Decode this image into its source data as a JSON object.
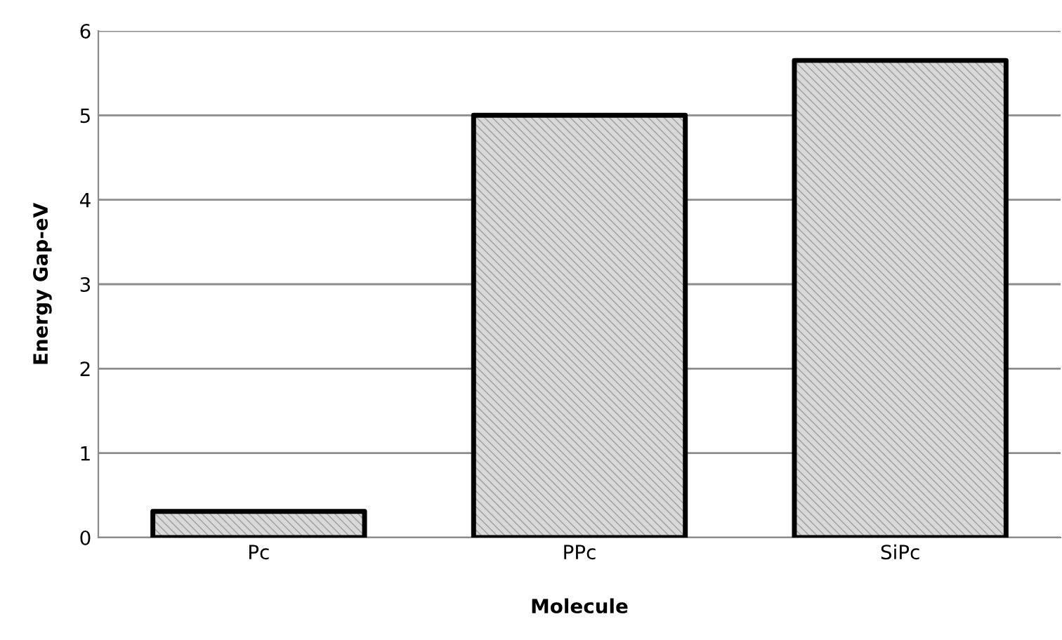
{
  "chart_data": {
    "type": "bar",
    "xlabel": "Molecule",
    "ylabel": "Energy Gap-eV",
    "categories": [
      "Pc",
      "PPc",
      "SiPc"
    ],
    "values": [
      0.31,
      5.0,
      5.65
    ],
    "color": "#d9d9d9",
    "ylim": [
      0,
      6
    ],
    "yticks": [
      0,
      1,
      2,
      3,
      4,
      5,
      6
    ],
    "grid": "y"
  }
}
